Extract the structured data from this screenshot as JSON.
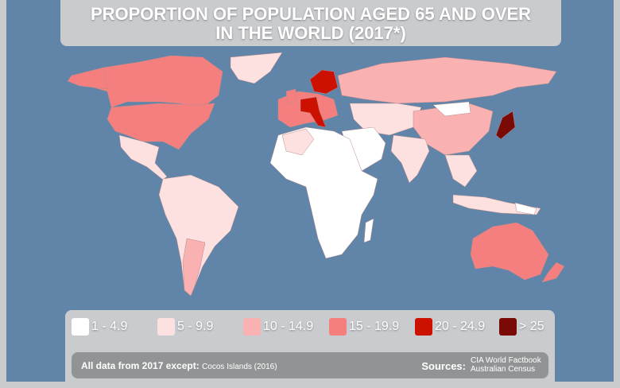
{
  "title": {
    "line1": "PROPORTION OF POPULATION AGED 65 AND OVER",
    "line2": "IN THE WORLD (2017*)"
  },
  "legend": [
    {
      "label": "1 - 4.9",
      "color": "#ffffff"
    },
    {
      "label": "5 - 9.9",
      "color": "#fde0e0"
    },
    {
      "label": "10 - 14.9",
      "color": "#f9b1b1"
    },
    {
      "label": "15 - 19.9",
      "color": "#f57f7f"
    },
    {
      "label": "20 - 24.9",
      "color": "#cc1100"
    },
    {
      "label": "> 25",
      "color": "#7a0a05"
    }
  ],
  "footer": {
    "note_label": "All data from 2017 except:",
    "note_value": "Cocos Islands (2016)",
    "sources_label": "Sources:",
    "sources": [
      "CIA World Factbook",
      "Australian Census"
    ]
  },
  "colors": {
    "ocean": "#6085a9",
    "panel": "#c9cbce",
    "footer": "#919495"
  }
}
